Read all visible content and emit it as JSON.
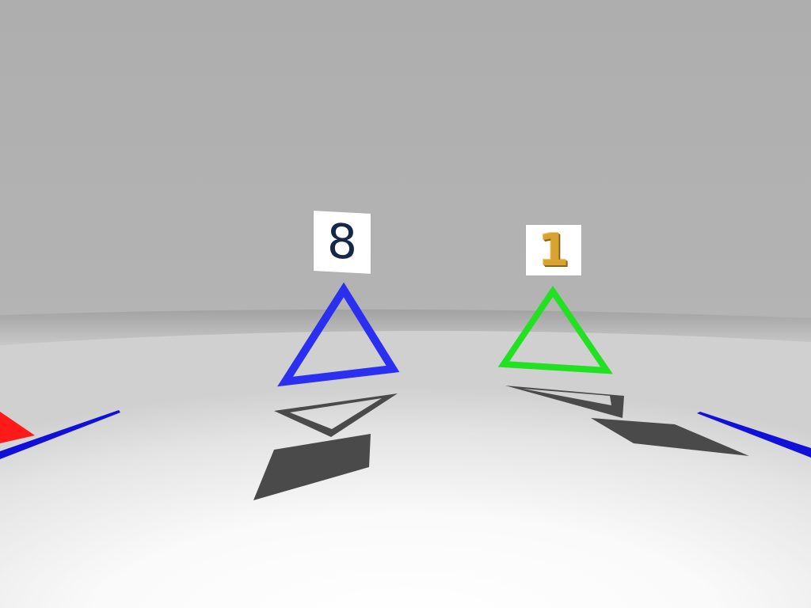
{
  "scene": {
    "sky_color": "#b0b0b0",
    "wall_color": "#9c9c9c",
    "floor_near_color": "#ffffff",
    "floor_far_color": "#d8d8d8",
    "shadow_color": "#4a4a4a"
  },
  "objects": [
    {
      "id": "blue-triangle",
      "shape": "triangle-outline",
      "color": "#2a2ff0",
      "label": "8",
      "label_color": "#14284a"
    },
    {
      "id": "green-triangle",
      "shape": "triangle-outline",
      "color": "#22e022",
      "label": "1",
      "label_color": "#d8a431"
    },
    {
      "id": "red-shape-left",
      "shape": "partial-triangle",
      "color": "#ff1a1a"
    },
    {
      "id": "blue-stripe-left",
      "shape": "stripe",
      "color": "#1010d8"
    },
    {
      "id": "blue-stripe-right",
      "shape": "stripe",
      "color": "#1010d8"
    }
  ]
}
